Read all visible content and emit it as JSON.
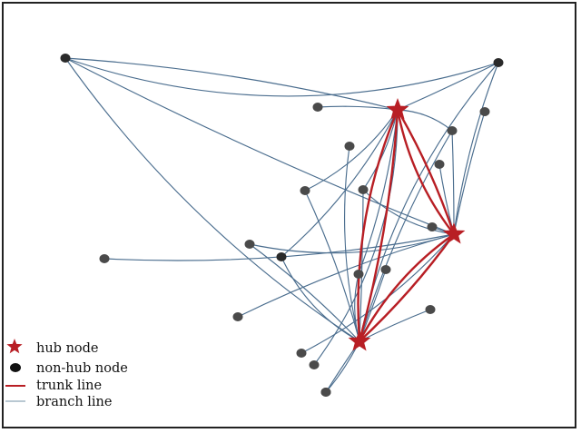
{
  "colors": {
    "hub": "#b81e24",
    "trunk": "#b81e24",
    "branch": "#4a6d8e",
    "node": "#4a4a4a",
    "node_dark": "#2a2a2a"
  },
  "legend": {
    "hub_node": "hub node",
    "non_hub_node": "non-hub node",
    "trunk_line": "trunk line",
    "branch_line": "branch line"
  },
  "network": {
    "hubs": [
      {
        "id": "H1"
      },
      {
        "id": "H2"
      },
      {
        "id": "H3"
      }
    ],
    "non_hub_nodes": [
      {
        "id": "A"
      },
      {
        "id": "B"
      },
      {
        "id": "C"
      },
      {
        "id": "D"
      },
      {
        "id": "E"
      },
      {
        "id": "F"
      },
      {
        "id": "G"
      },
      {
        "id": "I"
      },
      {
        "id": "J"
      },
      {
        "id": "K"
      },
      {
        "id": "L"
      },
      {
        "id": "M"
      },
      {
        "id": "N"
      },
      {
        "id": "O"
      },
      {
        "id": "P"
      },
      {
        "id": "Q"
      },
      {
        "id": "R"
      },
      {
        "id": "S"
      },
      {
        "id": "T"
      },
      {
        "id": "U"
      },
      {
        "id": "V"
      }
    ],
    "trunk_lines": [
      {
        "from": "H1",
        "to": "H2"
      },
      {
        "from": "H1",
        "to": "H3"
      },
      {
        "from": "H2",
        "to": "H3"
      }
    ],
    "branch_lines": [
      {
        "from": "A",
        "to": "H1"
      },
      {
        "from": "A",
        "to": "H2"
      },
      {
        "from": "A",
        "to": "H3"
      },
      {
        "from": "A",
        "to": "B"
      },
      {
        "from": "B",
        "to": "H1"
      },
      {
        "from": "B",
        "to": "H2"
      },
      {
        "from": "B",
        "to": "H3"
      },
      {
        "from": "C",
        "to": "H1"
      },
      {
        "from": "D",
        "to": "H2"
      },
      {
        "from": "E",
        "to": "H3"
      },
      {
        "from": "F",
        "to": "H1"
      },
      {
        "from": "F",
        "to": "H2"
      },
      {
        "from": "F",
        "to": "H3"
      },
      {
        "from": "G",
        "to": "H1"
      },
      {
        "from": "G",
        "to": "H3"
      },
      {
        "from": "I",
        "to": "H2"
      },
      {
        "from": "J",
        "to": "H1"
      },
      {
        "from": "J",
        "to": "H2"
      },
      {
        "from": "J",
        "to": "H3"
      },
      {
        "from": "K",
        "to": "H2"
      },
      {
        "from": "L",
        "to": "H2"
      },
      {
        "from": "L",
        "to": "H3"
      },
      {
        "from": "M",
        "to": "H2"
      },
      {
        "from": "N",
        "to": "H1"
      },
      {
        "from": "N",
        "to": "H3"
      },
      {
        "from": "O",
        "to": "H3"
      },
      {
        "from": "P",
        "to": "H1"
      },
      {
        "from": "P",
        "to": "H3"
      },
      {
        "from": "Q",
        "to": "H2"
      },
      {
        "from": "R",
        "to": "H3"
      },
      {
        "from": "S",
        "to": "H2"
      },
      {
        "from": "T",
        "to": "H1"
      },
      {
        "from": "U",
        "to": "H3"
      },
      {
        "from": "V",
        "to": "H3"
      }
    ]
  }
}
